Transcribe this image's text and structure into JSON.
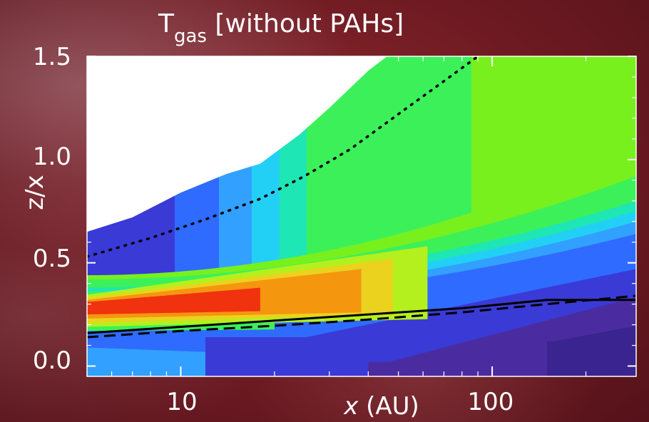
{
  "chart_data": {
    "type": "heatmap",
    "title_main": "T",
    "title_sub": "gas",
    "title_rest": " [without PAHs]",
    "ylabel": "z/x",
    "xlabel_var": "x",
    "xlabel_unit": " (AU)",
    "x_scale": "log",
    "xlim": [
      5,
      290
    ],
    "ylim": [
      -0.05,
      1.5
    ],
    "x_ticks": [
      {
        "value": 10,
        "label": "10"
      },
      {
        "value": 100,
        "label": "100"
      }
    ],
    "y_ticks": [
      {
        "value": 0.0,
        "label": "0.0"
      },
      {
        "value": 0.5,
        "label": "0.5"
      },
      {
        "value": 1.0,
        "label": "1.0"
      },
      {
        "value": 1.5,
        "label": "1.5"
      }
    ],
    "upper_boundary": [
      [
        5,
        0.65
      ],
      [
        7,
        0.72
      ],
      [
        10,
        0.84
      ],
      [
        14,
        0.93
      ],
      [
        18,
        0.98
      ],
      [
        24,
        1.12
      ],
      [
        30,
        1.25
      ],
      [
        40,
        1.43
      ],
      [
        46,
        1.5
      ]
    ],
    "colors": {
      "purple": "#4b2ca0",
      "darkblue": "#3a3ad6",
      "blue": "#2f6bff",
      "lightblue": "#32a0ff",
      "cyan": "#23d0f5",
      "teal": "#1ee6b4",
      "green": "#3cf05a",
      "lime": "#78f01e",
      "yellowgreen": "#b4f01e",
      "yellow": "#ebd21e",
      "orange": "#f5960f",
      "red": "#f0320f",
      "line": "#000000",
      "mask": "#ffffff"
    },
    "lines": [
      {
        "style": "dotted",
        "points": [
          [
            5,
            0.53
          ],
          [
            8,
            0.62
          ],
          [
            12,
            0.71
          ],
          [
            18,
            0.81
          ],
          [
            25,
            0.92
          ],
          [
            35,
            1.05
          ],
          [
            50,
            1.22
          ],
          [
            70,
            1.38
          ],
          [
            90,
            1.5
          ]
        ]
      },
      {
        "style": "solid",
        "points": [
          [
            5,
            0.16
          ],
          [
            10,
            0.19
          ],
          [
            20,
            0.22
          ],
          [
            40,
            0.25
          ],
          [
            80,
            0.28
          ],
          [
            150,
            0.32
          ],
          [
            290,
            0.32
          ]
        ]
      },
      {
        "style": "dashed",
        "points": [
          [
            5,
            0.14
          ],
          [
            10,
            0.17
          ],
          [
            20,
            0.195
          ],
          [
            40,
            0.225
          ],
          [
            80,
            0.26
          ],
          [
            150,
            0.3
          ],
          [
            290,
            0.34
          ]
        ]
      }
    ]
  }
}
